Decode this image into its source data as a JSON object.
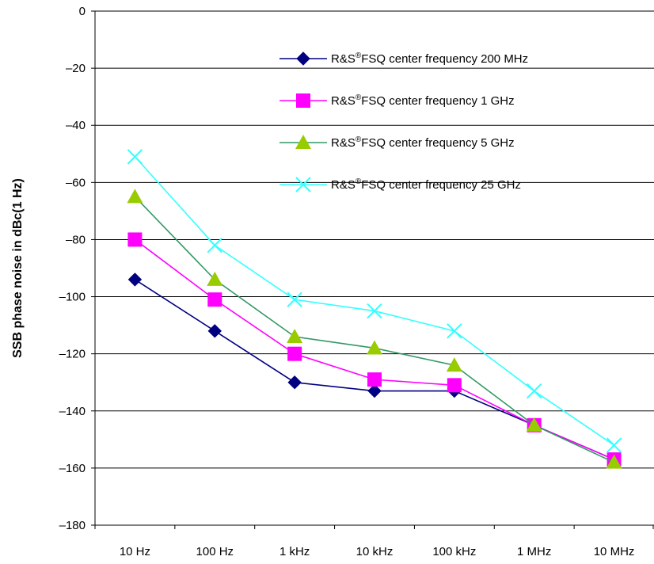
{
  "chart_data": {
    "type": "line",
    "title": "",
    "xlabel": "",
    "ylabel": "SSB phase noise in dBc(1 Hz)",
    "categories": [
      "10 Hz",
      "100 Hz",
      "1 kHz",
      "10 kHz",
      "100 kHz",
      "1 MHz",
      "10 MHz"
    ],
    "ylim": [
      -180,
      0
    ],
    "yticks": [
      0,
      -20,
      -40,
      -60,
      -80,
      -100,
      -120,
      -140,
      -160,
      -180
    ],
    "ytick_labels": [
      "0",
      "–20",
      "–40",
      "–60",
      "–80",
      "–100",
      "–120",
      "–140",
      "–160",
      "–180"
    ],
    "grid": "horizontal",
    "legend_position": "top-right",
    "series": [
      {
        "name_parts": [
          "R&S",
          "®",
          "FSQ center frequency 200 MHz"
        ],
        "marker": "diamond",
        "color": "#000080",
        "values": [
          -94,
          -112,
          -130,
          -133,
          -133,
          -145,
          -157
        ]
      },
      {
        "name_parts": [
          "R&S",
          "®",
          "FSQ center frequency 1 GHz"
        ],
        "marker": "square",
        "color": "#ff00ff",
        "values": [
          -80,
          -101,
          -120,
          -129,
          -131,
          -145,
          -157
        ]
      },
      {
        "name_parts": [
          "R&S",
          "®",
          "FSQ center frequency 5 GHz"
        ],
        "marker": "triangle",
        "color": "#339966",
        "marker_color": "#99cc00",
        "values": [
          -65,
          -94,
          -114,
          -118,
          -124,
          -145,
          -158
        ]
      },
      {
        "name_parts": [
          "R&S",
          "®",
          "FSQ center frequency 25 GHz"
        ],
        "marker": "x",
        "color": "#33ffff",
        "values": [
          -51,
          -82,
          -101,
          -105,
          -112,
          -133,
          -152
        ]
      }
    ]
  }
}
